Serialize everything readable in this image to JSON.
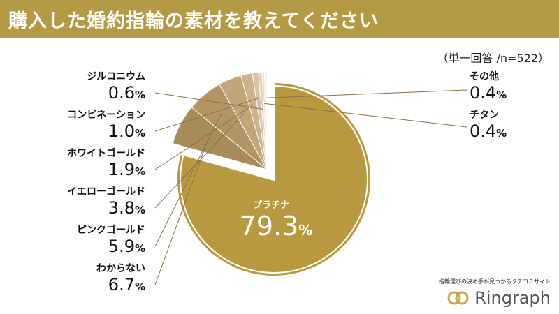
{
  "header": {
    "title": "購入した婚約指輪の素材を教えてください"
  },
  "subtitle": "（単一回答 /n=522）",
  "chart_data": {
    "type": "pie",
    "title": "購入した婚約指輪の素材を教えてください",
    "unit": "%",
    "slices": [
      {
        "label": "プラチナ",
        "value": 79.3,
        "color": "#b8993f"
      },
      {
        "label": "わからない",
        "value": 6.7,
        "color": "#a88c5a"
      },
      {
        "label": "ピンクゴールド",
        "value": 5.9,
        "color": "#b39565"
      },
      {
        "label": "イエローゴールド",
        "value": 3.8,
        "color": "#c2a57a"
      },
      {
        "label": "ホワイトゴールド",
        "value": 1.9,
        "color": "#ccb28d"
      },
      {
        "label": "コンビネーション",
        "value": 1.0,
        "color": "#d8c3a3"
      },
      {
        "label": "ジルコニウム",
        "value": 0.6,
        "color": "#e3d2ba"
      },
      {
        "label": "チタン",
        "value": 0.4,
        "color": "#ecdfcf"
      },
      {
        "label": "その他",
        "value": 0.4,
        "color": "#f4ece2"
      }
    ]
  },
  "labels": {
    "zirconium": {
      "name": "ジルコニウム",
      "num": "0.6",
      "pct": "%"
    },
    "combination": {
      "name": "コンビネーション",
      "num": "1.0",
      "pct": "%"
    },
    "white_gold": {
      "name": "ホワイトゴールド",
      "num": "1.9",
      "pct": "%"
    },
    "yellow_gold": {
      "name": "イエローゴールド",
      "num": "3.8",
      "pct": "%"
    },
    "pink_gold": {
      "name": "ピンクゴールド",
      "num": "5.9",
      "pct": "%"
    },
    "unknown": {
      "name": "わからない",
      "num": "6.7",
      "pct": "%"
    },
    "other": {
      "name": "その他",
      "num": "0.4",
      "pct": "%"
    },
    "titanium": {
      "name": "チタン",
      "num": "0.4",
      "pct": "%"
    },
    "platinum": {
      "name": "プラチナ",
      "num": "79.3",
      "pct": "%"
    }
  },
  "logo": {
    "tagline": "指輪選びの決め手が見つかるクチコミサイト",
    "name": "Ringraph",
    "color": "#c9a84a"
  }
}
